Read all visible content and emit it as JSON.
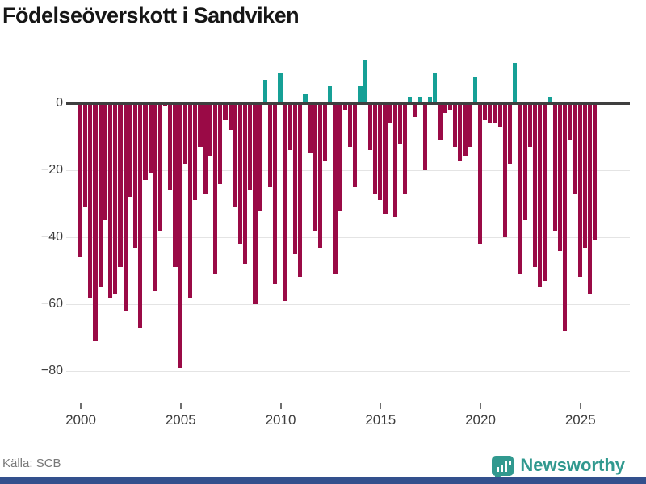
{
  "title": "Födelseöverskott i Sandviken",
  "source": "Källa: SCB",
  "brand": {
    "name": "Newsworthy"
  },
  "colors": {
    "negative_bar": "#9a0a46",
    "positive_bar": "#16a096",
    "zero_axis": "#3f3f3f",
    "gridline": "#e4e4e4",
    "tick_text": "#3d3d3d",
    "source_text": "#787878",
    "brand_teal": "#31998f",
    "bottom_bar": "#33508d"
  },
  "chart_data": {
    "type": "bar",
    "title": "Födelseöverskott i Sandviken",
    "frequency": "quarterly",
    "start_year": 2000,
    "x_tick_labels": [
      "2000",
      "2005",
      "2010",
      "2015",
      "2020",
      "2025"
    ],
    "y_tick_labels": [
      "0",
      "−20",
      "−40",
      "−60",
      "−80"
    ],
    "y_tick_values": [
      0,
      -20,
      -40,
      -60,
      -80
    ],
    "ylim": [
      -85,
      15
    ],
    "grid": true,
    "legend": "none",
    "values": [
      -46,
      -31,
      -58,
      -71,
      -55,
      -35,
      -58,
      -57,
      -49,
      -62,
      -28,
      -43,
      -67,
      -23,
      -21,
      -56,
      -38,
      -1,
      -26,
      -49,
      -79,
      -18,
      -58,
      -29,
      -13,
      -27,
      -16,
      -51,
      -24,
      -5,
      -8,
      -31,
      -42,
      -48,
      -26,
      -60,
      -32,
      7,
      -25,
      -54,
      9,
      -59,
      -14,
      -45,
      -52,
      3,
      -15,
      -38,
      -43,
      -17,
      5,
      -51,
      -32,
      -2,
      -13,
      -25,
      5,
      13,
      -14,
      -27,
      -29,
      -33,
      -6,
      -34,
      -12,
      -27,
      2,
      -4,
      2,
      -20,
      2,
      9,
      -11,
      -3,
      -2,
      -13,
      -17,
      -16,
      -13,
      8,
      -42,
      -5,
      -6,
      -6,
      -7,
      -40,
      -18,
      12,
      -51,
      -35,
      -13,
      -49,
      -55,
      -53,
      2,
      -38,
      -44,
      -68,
      -11,
      -27,
      -52,
      -43,
      -57,
      -41
    ]
  }
}
